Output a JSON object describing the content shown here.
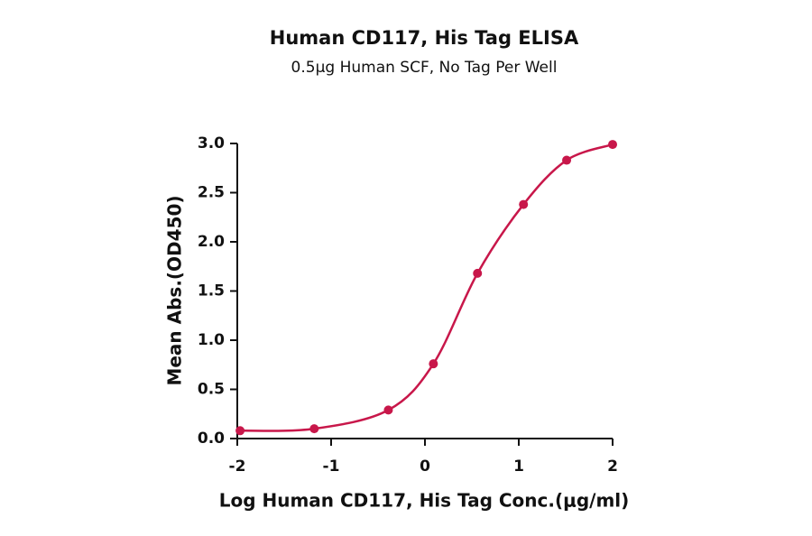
{
  "chart_data": {
    "type": "scatter",
    "title": "Human CD117, His Tag ELISA",
    "subtitle": "0.5μg Human SCF, No Tag Per Well",
    "x_label": "Log Human CD117, His Tag Conc.(μg/ml)",
    "y_label": "Mean Abs.(OD450)",
    "x": [
      -1.97,
      -1.18,
      -0.39,
      0.09,
      0.56,
      1.05,
      1.51,
      2.0
    ],
    "values": [
      0.08,
      0.1,
      0.29,
      0.76,
      1.68,
      2.38,
      2.83,
      2.99
    ],
    "color": "#c8174a",
    "xlim": [
      -2,
      2
    ],
    "xticks": [
      -2,
      -1,
      0,
      1,
      2
    ],
    "ylim": [
      0,
      3
    ],
    "yticks": [
      {
        "value": 0,
        "label": "0.0"
      },
      0.5,
      {
        "value": 1,
        "label": "1.0"
      },
      1.5,
      {
        "value": 2,
        "label": "2.0"
      },
      2.5,
      {
        "value": 3,
        "label": "3.0"
      }
    ]
  }
}
